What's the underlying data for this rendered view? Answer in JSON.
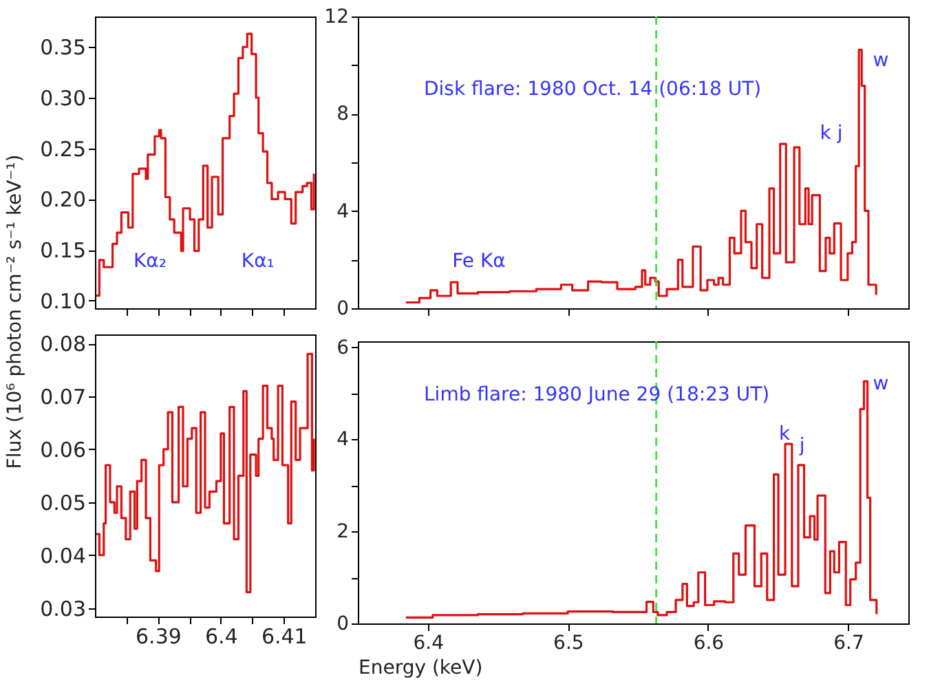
{
  "chart_data": [
    {
      "type": "step",
      "xlim": [
        6.38,
        6.415
      ],
      "ylim": [
        0.0925,
        0.38
      ],
      "tick_labels": "y",
      "grid": false,
      "xticks": [
        {
          "value": 6.385,
          "label": null
        },
        6.39,
        {
          "value": 6.395,
          "label": null
        },
        6.4,
        {
          "value": 6.405,
          "label": null
        },
        6.41
      ],
      "yticks": [
        {
          "value": 0.1,
          "label": "0.10"
        },
        0.15,
        {
          "value": 0.2,
          "label": "0.20"
        },
        0.25,
        {
          "value": 0.3,
          "label": "0.30"
        },
        0.35
      ],
      "annotations": [
        "Kα₂",
        "Kα₁"
      ],
      "series": [
        {
          "color": "#dd1111",
          "x": [
            6.3802,
            6.3807,
            6.3814,
            6.3828,
            6.3835,
            6.3842,
            6.3853,
            6.386,
            6.387,
            6.3881,
            6.3884,
            6.3895,
            6.3902,
            6.3905,
            6.3912,
            6.3919,
            6.3926,
            6.3937,
            6.394,
            6.3951,
            6.3958,
            6.3965,
            6.3972,
            6.3979,
            6.3986,
            6.3996,
            6.4003,
            6.4014,
            6.4021,
            6.4028,
            6.4035,
            6.4042,
            6.4049,
            6.4056,
            6.406,
            6.4067,
            6.4074,
            6.4081,
            6.4091,
            6.4102,
            6.4112,
            6.4119,
            6.413,
            6.4137,
            6.4144,
            6.4148
          ],
          "values": [
            0.105,
            0.14,
            0.133,
            0.156,
            0.167,
            0.187,
            0.172,
            0.225,
            0.23,
            0.22,
            0.244,
            0.262,
            0.268,
            0.26,
            0.202,
            0.18,
            0.167,
            0.149,
            0.191,
            0.18,
            0.149,
            0.18,
            0.233,
            0.172,
            0.222,
            0.185,
            0.26,
            0.282,
            0.304,
            0.339,
            0.35,
            0.363,
            0.343,
            0.3,
            0.265,
            0.247,
            0.216,
            0.2,
            0.207,
            0.2,
            0.176,
            0.207,
            0.213,
            0.216,
            0.19,
            0.225
          ]
        }
      ]
    },
    {
      "type": "step",
      "xlim": [
        6.35,
        6.743
      ],
      "ylim": [
        0,
        12
      ],
      "tick_labels": "y",
      "grid": false,
      "xticks": [
        6.4,
        6.5,
        6.6,
        6.7
      ],
      "yticks": [
        0,
        {
          "value": 2,
          "label": null
        },
        4,
        {
          "value": 6,
          "label": null
        },
        8,
        {
          "value": 10,
          "label": null
        },
        12
      ],
      "ref_lines": [
        {
          "axis": "x",
          "value": 6.563,
          "color": "#33dd33",
          "line_style": "dashed"
        }
      ],
      "annotations": [
        "Disk flare: 1980 Oct. 14 (06:18 UT)",
        "Fe Kα",
        "k j",
        "w"
      ],
      "series": [
        {
          "color": "#dd1111",
          "x": [
            6.3843,
            6.3939,
            6.4019,
            6.4067,
            6.4164,
            6.4212,
            6.4357,
            6.4581,
            6.4774,
            6.4951,
            6.5031,
            6.5144,
            6.524,
            6.5352,
            6.5481,
            6.5529,
            6.5552,
            6.5587,
            6.5625,
            6.5648,
            6.5706,
            6.5754,
            6.5786,
            6.5818,
            6.585,
            6.5892,
            6.5947,
            6.5995,
            6.6043,
            6.6075,
            6.6107,
            6.6155,
            6.6188,
            6.6236,
            6.6268,
            6.631,
            6.6348,
            6.6387,
            6.6438,
            6.647,
            6.6515,
            6.6557,
            6.6615,
            6.6653,
            6.6695,
            6.6718,
            6.6743,
            6.6798,
            6.684,
            6.6869,
            6.6901,
            6.6949,
            6.6997,
            6.7029,
            6.7055,
            6.7077,
            6.7097,
            6.7119,
            6.7145,
            6.72
          ],
          "values": [
            0.24,
            0.42,
            0.74,
            0.51,
            1.07,
            0.61,
            0.66,
            0.7,
            0.79,
            0.97,
            0.74,
            1.1,
            1.07,
            0.79,
            0.88,
            1.56,
            0.97,
            1.25,
            1.1,
            0.51,
            0.79,
            0.79,
            1.99,
            0.88,
            0.88,
            2.54,
            0.74,
            1.16,
            0.97,
            1.25,
            0.97,
            2.9,
            2.26,
            4.01,
            2.72,
            1.65,
            3.46,
            1.25,
            4.93,
            2.26,
            6.76,
            1.89,
            6.62,
            3.46,
            4.93,
            3.46,
            4.65,
            1.53,
            2.9,
            2.26,
            3.49,
            1.16,
            2.26,
            2.72,
            5.85,
            10.63,
            9.15,
            4.01,
            0.97,
            0.55
          ]
        }
      ]
    },
    {
      "type": "step",
      "xlim": [
        6.38,
        6.415
      ],
      "ylim": [
        0.0284,
        0.0817
      ],
      "grid": false,
      "ylabel": "Flux (10⁶ photon cm⁻² s⁻¹ keV⁻¹)",
      "xticks": [
        {
          "value": 6.385,
          "label": null
        },
        6.39,
        {
          "value": 6.395,
          "label": null
        },
        6.4,
        {
          "value": 6.405,
          "label": null
        },
        6.41
      ],
      "yticks": [
        0.03,
        0.04,
        0.05,
        0.06,
        0.07,
        0.08
      ],
      "series": [
        {
          "color": "#dd1111",
          "x": [
            6.3802,
            6.3807,
            6.3814,
            6.3817,
            6.3824,
            6.3831,
            6.3835,
            6.3842,
            6.3849,
            6.3856,
            6.3863,
            6.3867,
            6.3874,
            6.3881,
            6.3888,
            6.3897,
            6.3902,
            6.3909,
            6.3916,
            6.3923,
            6.3933,
            6.394,
            6.3947,
            6.3954,
            6.3961,
            6.3968,
            6.3975,
            6.3982,
            6.3993,
            6.4,
            6.4005,
            6.4014,
            6.4021,
            6.4028,
            6.4036,
            6.4041,
            6.4047,
            6.4056,
            6.406,
            6.4067,
            6.4074,
            6.4081,
            6.4084,
            6.4091,
            6.4098,
            6.4107,
            6.4112,
            6.4119,
            6.4126,
            6.4133,
            6.4138,
            6.4145,
            6.4148
          ],
          "values": [
            0.044,
            0.04,
            0.046,
            0.057,
            0.05,
            0.048,
            0.053,
            0.047,
            0.043,
            0.052,
            0.045,
            0.054,
            0.058,
            0.047,
            0.039,
            0.037,
            0.057,
            0.06,
            0.067,
            0.05,
            0.068,
            0.053,
            0.062,
            0.064,
            0.048,
            0.067,
            0.049,
            0.052,
            0.054,
            0.063,
            0.046,
            0.068,
            0.043,
            0.055,
            0.071,
            0.033,
            0.059,
            0.055,
            0.062,
            0.072,
            0.064,
            0.062,
            0.058,
            0.072,
            0.057,
            0.046,
            0.069,
            0.058,
            0.064,
            0.064,
            0.078,
            0.056,
            0.062
          ]
        }
      ]
    },
    {
      "type": "step",
      "xlim": [
        6.35,
        6.743
      ],
      "ylim": [
        0,
        6.13
      ],
      "grid": false,
      "xlabel": "Energy (keV)",
      "xticks": [
        6.4,
        6.5,
        6.6,
        6.7
      ],
      "yticks": [
        0,
        {
          "value": 1,
          "label": null
        },
        2,
        {
          "value": 3,
          "label": null
        },
        4,
        {
          "value": 5,
          "label": null
        },
        6
      ],
      "ref_lines": [
        {
          "axis": "x",
          "value": 6.563,
          "color": "#33dd33",
          "line_style": "dashed"
        }
      ],
      "annotations": [
        "Limb flare: 1980 June 29 (18:23 UT)",
        "k",
        "j",
        "w"
      ],
      "series": [
        {
          "color": "#dd1111",
          "x": [
            6.3843,
            6.4035,
            6.4357,
            6.4678,
            6.4999,
            6.532,
            6.5513,
            6.5561,
            6.5609,
            6.5641,
            6.5706,
            6.577,
            6.5818,
            6.585,
            6.5898,
            6.5931,
            6.5979,
            6.6043,
            6.6123,
            6.6181,
            6.622,
            6.6268,
            6.6332,
            6.638,
            6.6422,
            6.647,
            6.6502,
            6.6551,
            6.6599,
            6.6644,
            6.6686,
            6.6728,
            6.676,
            6.6782,
            6.6837,
            6.6872,
            6.6901,
            6.6936,
            6.6984,
            6.7016,
            6.7055,
            6.7087,
            6.7113,
            6.7138,
            6.7158,
            6.7203
          ],
          "values": [
            0.13,
            0.18,
            0.2,
            0.22,
            0.26,
            0.25,
            0.25,
            0.47,
            0.25,
            0.18,
            0.25,
            0.51,
            0.86,
            0.38,
            0.46,
            1.11,
            0.4,
            0.48,
            0.46,
            1.52,
            1.06,
            2.13,
            0.81,
            1.52,
            0.51,
            3.24,
            1.06,
            3.9,
            0.81,
            3.44,
            1.87,
            2.33,
            1.82,
            2.78,
            0.66,
            1.57,
            1.11,
            1.77,
            0.4,
            0.96,
            1.32,
            4.66,
            5.26,
            2.73,
            0.51,
            0.2
          ]
        }
      ]
    }
  ]
}
